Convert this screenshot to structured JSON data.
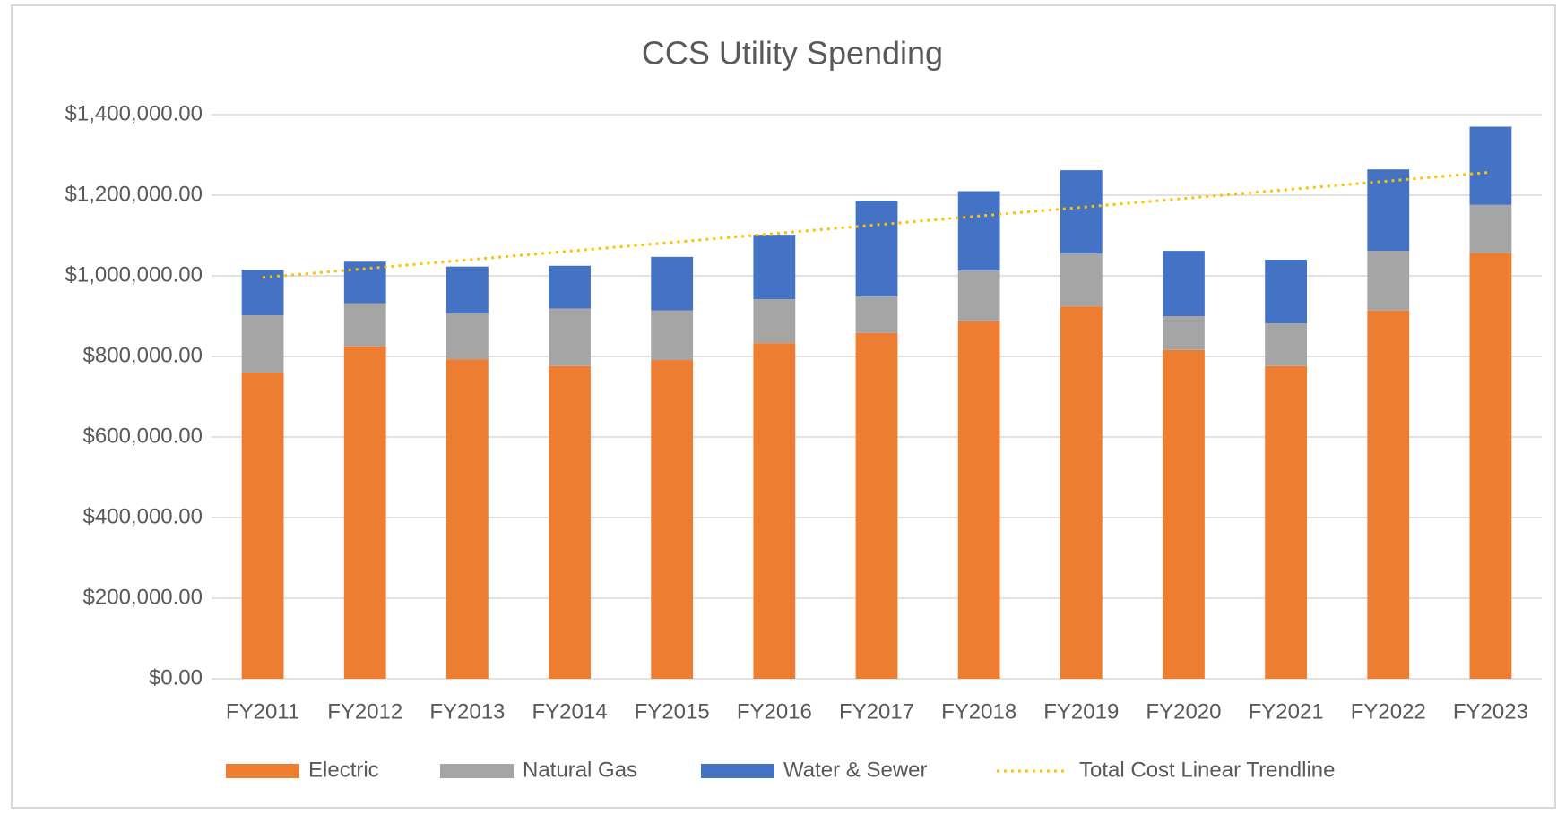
{
  "chart_data": {
    "type": "bar",
    "stacked": true,
    "title": "CCS Utility Spending",
    "categories": [
      "FY2011",
      "FY2012",
      "FY2013",
      "FY2014",
      "FY2015",
      "FY2016",
      "FY2017",
      "FY2018",
      "FY2019",
      "FY2020",
      "FY2021",
      "FY2022",
      "FY2023"
    ],
    "series": [
      {
        "name": "Electric",
        "color": "#ed7d31",
        "values": [
          760000,
          825000,
          793000,
          776000,
          791000,
          833000,
          858000,
          887000,
          924000,
          816000,
          776000,
          914000,
          1057000
        ]
      },
      {
        "name": "Natural Gas",
        "color": "#a5a5a5",
        "values": [
          142000,
          107000,
          114000,
          143000,
          123000,
          109000,
          91000,
          126000,
          131000,
          84000,
          106000,
          148000,
          119000
        ]
      },
      {
        "name": "Water & Sewer",
        "color": "#4472c4",
        "values": [
          113000,
          103000,
          116000,
          106000,
          133000,
          160000,
          237000,
          197000,
          207000,
          162000,
          158000,
          202000,
          194000
        ]
      },
      {
        "name": "Total Cost Linear Trendline",
        "type": "line",
        "dash": "dotted",
        "color": "#ffc000",
        "values": [
          996000,
          1017750,
          1039500,
          1061250,
          1083000,
          1104750,
          1126500,
          1148250,
          1170000,
          1191750,
          1213500,
          1235250,
          1257000
        ]
      }
    ],
    "ylim": [
      0,
      1400000
    ],
    "yticks": [
      {
        "value": 0,
        "label": "$0.00"
      },
      {
        "value": 200000,
        "label": "$200,000.00"
      },
      {
        "value": 400000,
        "label": "$400,000.00"
      },
      {
        "value": 600000,
        "label": "$600,000.00"
      },
      {
        "value": 800000,
        "label": "$800,000.00"
      },
      {
        "value": 1000000,
        "label": "$1,000,000.00"
      },
      {
        "value": 1200000,
        "label": "$1,200,000.00"
      },
      {
        "value": 1400000,
        "label": "$1,400,000.00"
      }
    ],
    "grid": true,
    "legend": "bottom"
  }
}
